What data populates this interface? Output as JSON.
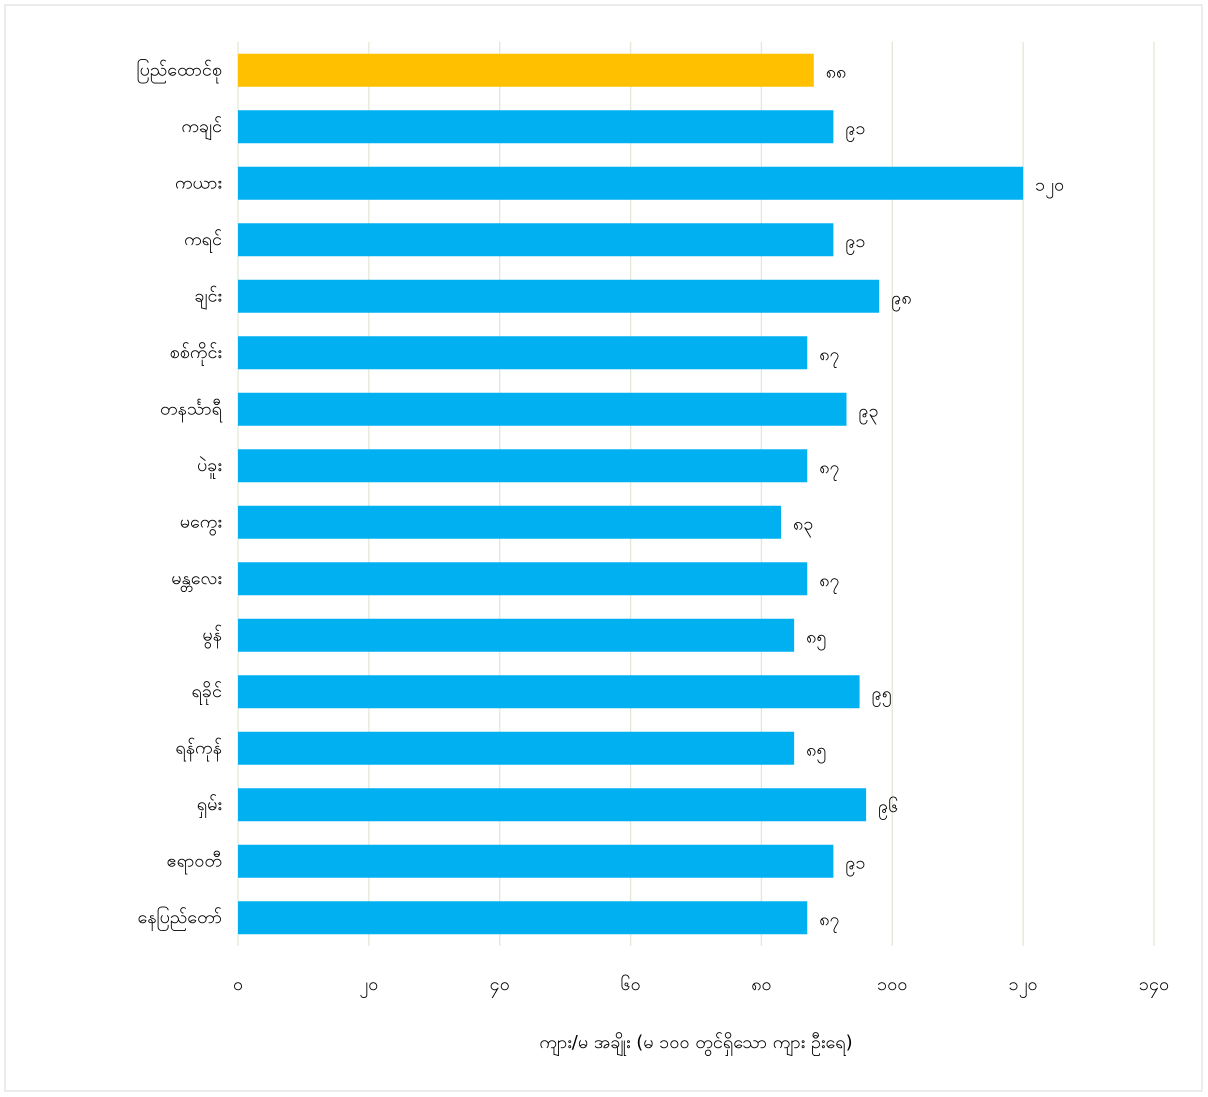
{
  "chart_data": {
    "type": "hbar",
    "x_label": "ကျား/မ အချိုး (မ ၁၀၀ တွင်ရှိသော ကျား ဦးရေ)",
    "categories": [
      "ပြည်ထောင်စု",
      "ကချင်",
      "ကယား",
      "ကရင်",
      "ချင်း",
      "စစ်ကိုင်း",
      "တနင်္သာရီ",
      "ပဲခူး",
      "မကွေး",
      "မန္တလေး",
      "မွန်",
      "ရခိုင်",
      "ရန်ကုန်",
      "ရှမ်း",
      "ဧရာဝတီ",
      "နေပြည်တော်"
    ],
    "values": [
      88,
      91,
      120,
      91,
      98,
      87,
      93,
      87,
      83,
      87,
      85,
      95,
      85,
      96,
      91,
      87
    ],
    "value_labels": [
      "၈၈",
      "၉၁",
      "၁၂၀",
      "၉၁",
      "၉၈",
      "၈၇",
      "၉၃",
      "၈၇",
      "၈၃",
      "၈၇",
      "၈၅",
      "၉၅",
      "၈၅",
      "၉၆",
      "၉၁",
      "၈၇"
    ],
    "colors": [
      "#ffc000",
      "#00b0f0",
      "#00b0f0",
      "#00b0f0",
      "#00b0f0",
      "#00b0f0",
      "#00b0f0",
      "#00b0f0",
      "#00b0f0",
      "#00b0f0",
      "#00b0f0",
      "#00b0f0",
      "#00b0f0",
      "#00b0f0",
      "#00b0f0",
      "#00b0f0"
    ],
    "xlim": [
      0,
      140
    ],
    "xticks": [
      {
        "value": 0,
        "label": "၀"
      },
      {
        "value": 20,
        "label": "၂၀"
      },
      {
        "value": 40,
        "label": "၄၀"
      },
      {
        "value": 60,
        "label": "၆၀"
      },
      {
        "value": 80,
        "label": "၈၀"
      },
      {
        "value": 100,
        "label": "၁၀၀"
      },
      {
        "value": 120,
        "label": "၁၂၀"
      },
      {
        "value": 140,
        "label": "၁၄၀"
      }
    ],
    "grid": true
  }
}
